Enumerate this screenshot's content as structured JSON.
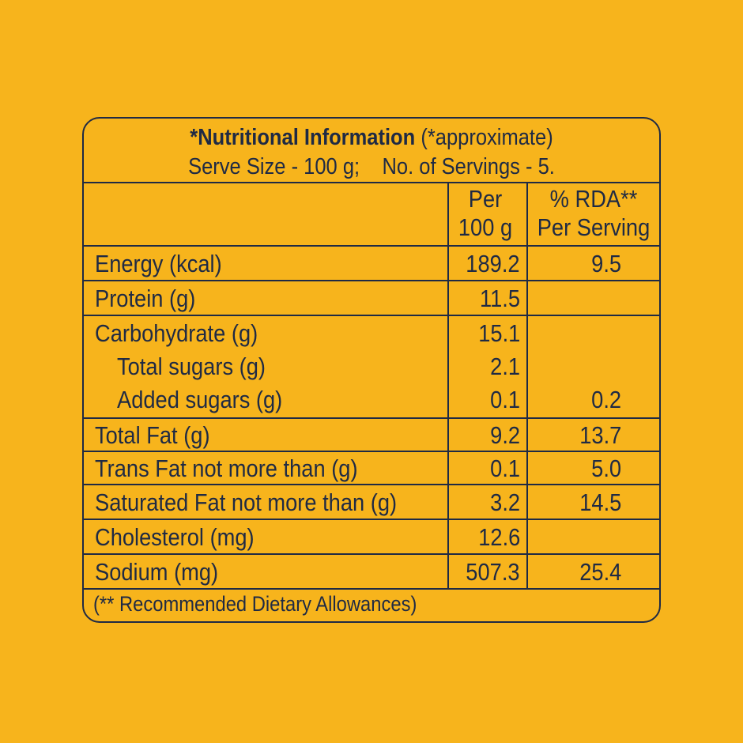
{
  "header": {
    "title_bold": "*Nutritional Information",
    "title_note": "(*approximate)",
    "serve_line": "Serve Size - 100 g;    No. of Servings - 5."
  },
  "columns": {
    "per_line1": "Per",
    "per_line2": "100 g",
    "rda_line1": "% RDA**",
    "rda_line2": "Per Serving"
  },
  "rows": [
    {
      "name": "Energy (kcal)",
      "per": "189.2",
      "rda": "9.5"
    },
    {
      "name": "Protein (g)",
      "per": "11.5",
      "rda": ""
    },
    {
      "name": "Carbohydrate (g)",
      "per": "15.1",
      "rda": ""
    },
    {
      "name": "Total sugars (g)",
      "per": "2.1",
      "rda": ""
    },
    {
      "name": "Added sugars (g)",
      "per": "0.1",
      "rda": "0.2"
    },
    {
      "name": "Total Fat (g)",
      "per": "9.2",
      "rda": "13.7"
    },
    {
      "name": "Trans Fat not more than (g)",
      "per": "0.1",
      "rda": "5.0"
    },
    {
      "name": "Saturated Fat not more than (g)",
      "per": "3.2",
      "rda": "14.5"
    },
    {
      "name": "Cholesterol (mg)",
      "per": "12.6",
      "rda": ""
    },
    {
      "name": "Sodium (mg)",
      "per": "507.3",
      "rda": "25.4"
    }
  ],
  "footer": "(** Recommended Dietary Allowances)"
}
